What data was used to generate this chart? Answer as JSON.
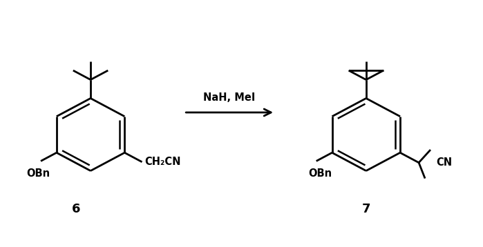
{
  "bg_color": "#ffffff",
  "line_color": "#000000",
  "line_width": 2.0,
  "arrow_label": "NaH, MeI",
  "compound6_label": "6",
  "compound7_label": "7",
  "ch2cn_label": "CH₂CN",
  "obn_label": "OBn",
  "cn_label": "CN",
  "obn2_label": "OBn",
  "figsize": [
    6.99,
    3.58
  ],
  "dpi": 100
}
